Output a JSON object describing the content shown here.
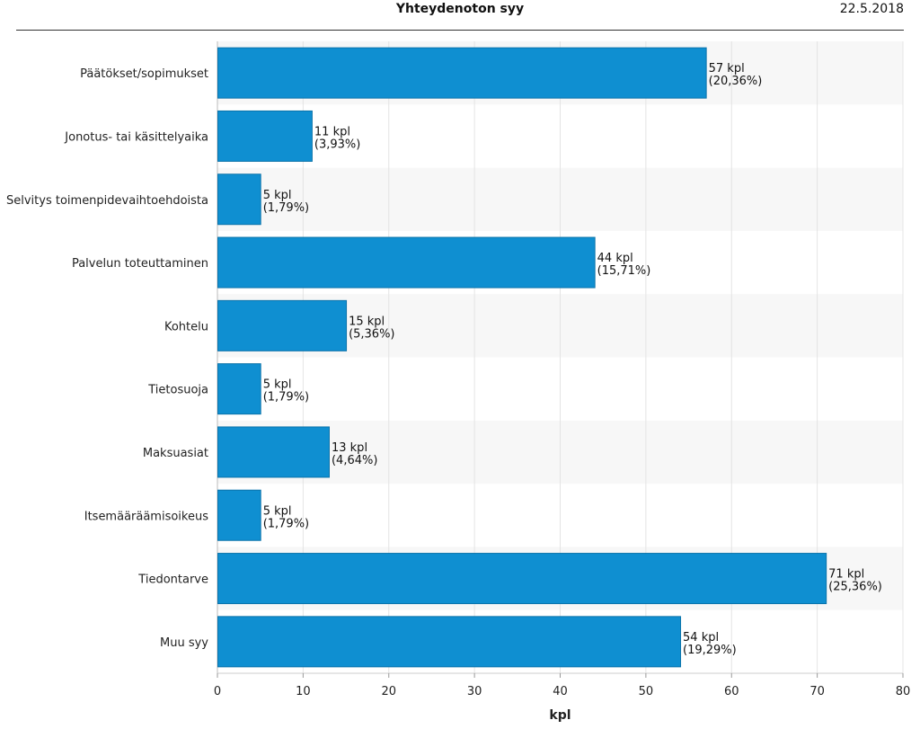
{
  "header": {
    "title": "Yhteydenoton syy",
    "date": "22.5.2018"
  },
  "chart_data": {
    "type": "bar",
    "orientation": "horizontal",
    "title": "Yhteydenoton syy",
    "xlabel": "kpl",
    "ylabel": "",
    "xlim": [
      0,
      80
    ],
    "xticks": [
      0,
      10,
      20,
      30,
      40,
      50,
      60,
      70,
      80
    ],
    "grid": true,
    "bar_color": "#0f8fd1",
    "alt_row_color": "#f7f7f7",
    "categories": [
      "Päätökset/sopimukset",
      "Jonotus- tai käsittelyaika",
      "Selvitys toimenpidevaihtoehdoista",
      "Palvelun toteuttaminen",
      "Kohtelu",
      "Tietosuoja",
      "Maksuasiat",
      "Itsemääräämisoikeus",
      "Tiedontarve",
      "Muu syy"
    ],
    "values": [
      57,
      11,
      5,
      44,
      15,
      5,
      13,
      5,
      71,
      54
    ],
    "data_labels": [
      [
        "57 kpl",
        "(20,36%)"
      ],
      [
        "11 kpl",
        "(3,93%)"
      ],
      [
        "5 kpl",
        "(1,79%)"
      ],
      [
        "44 kpl",
        "(15,71%)"
      ],
      [
        "15 kpl",
        "(5,36%)"
      ],
      [
        "5 kpl",
        "(1,79%)"
      ],
      [
        "13 kpl",
        "(4,64%)"
      ],
      [
        "5 kpl",
        "(1,79%)"
      ],
      [
        "71 kpl",
        "(25,36%)"
      ],
      [
        "54 kpl",
        "(19,29%)"
      ]
    ]
  }
}
